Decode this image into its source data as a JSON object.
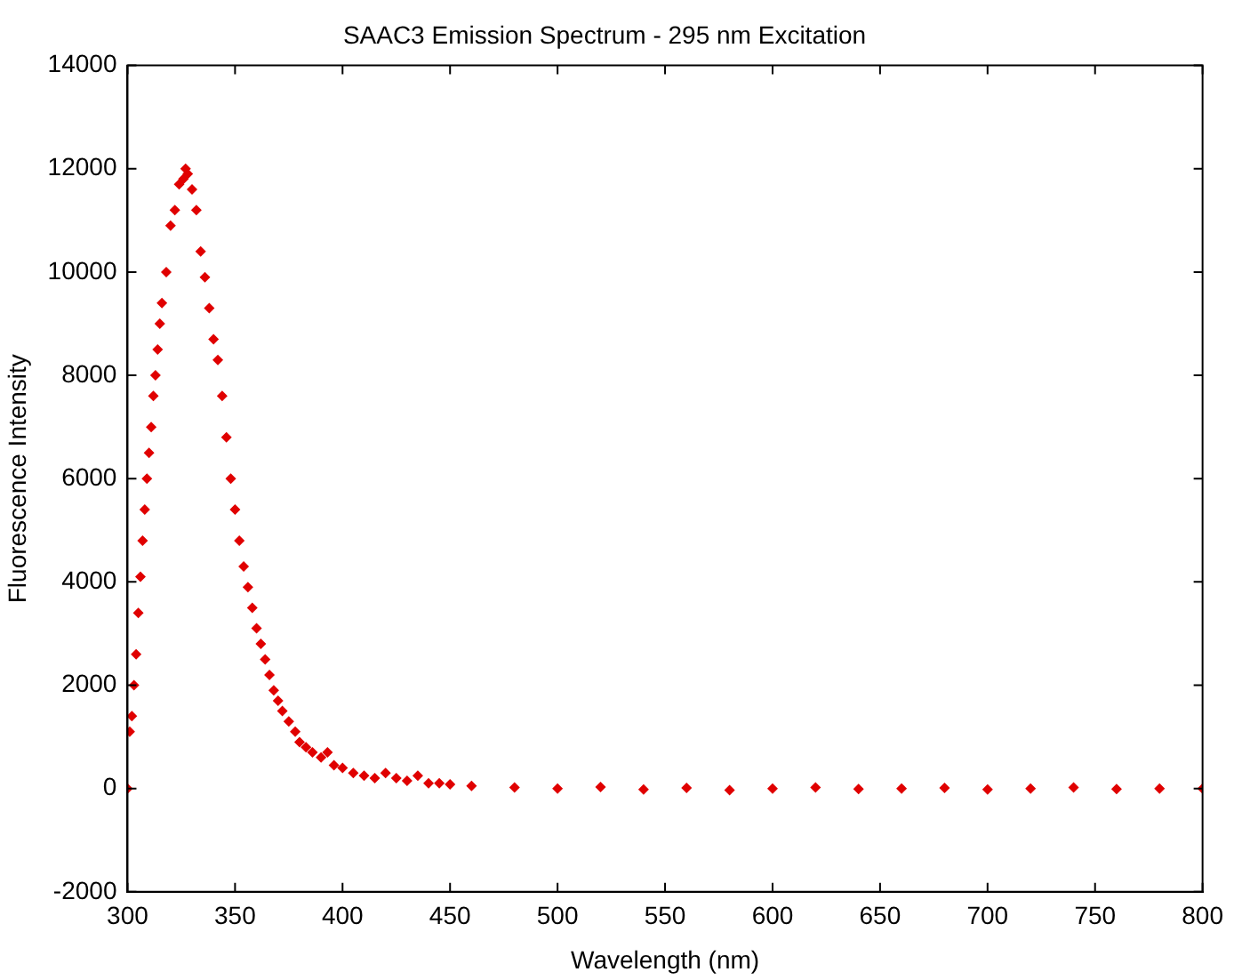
{
  "chart_data": {
    "type": "scatter",
    "title": "SAAC3 Emission Spectrum - 295 nm Excitation",
    "xlabel": "Wavelength (nm)",
    "ylabel": "Fluorescence Intensity",
    "x": [
      300,
      301,
      302,
      303,
      304,
      305,
      306,
      307,
      308,
      309,
      310,
      311,
      312,
      313,
      314,
      315,
      316,
      318,
      320,
      322,
      324,
      326,
      327,
      328,
      330,
      332,
      334,
      336,
      338,
      340,
      342,
      344,
      346,
      348,
      350,
      352,
      354,
      356,
      358,
      360,
      362,
      364,
      366,
      368,
      370,
      372,
      375,
      378,
      380,
      383,
      386,
      390,
      393,
      396,
      400,
      405,
      410,
      415,
      420,
      425,
      430,
      435,
      440,
      445,
      450,
      460,
      480,
      500,
      520,
      540,
      560,
      580,
      600,
      620,
      640,
      660,
      680,
      700,
      720,
      740,
      760,
      780,
      800
    ],
    "series": [
      {
        "color": "#e00000",
        "values": [
          0,
          1100,
          1400,
          2000,
          2600,
          3400,
          4100,
          4800,
          5400,
          6000,
          6500,
          7000,
          7600,
          8000,
          8500,
          9000,
          9400,
          10000,
          10900,
          11200,
          11700,
          11800,
          12000,
          11900,
          11600,
          11200,
          10400,
          9900,
          9300,
          8700,
          8300,
          7600,
          6800,
          6000,
          5400,
          4800,
          4300,
          3900,
          3500,
          3100,
          2800,
          2500,
          2200,
          1900,
          1700,
          1500,
          1300,
          1100,
          900,
          800,
          700,
          600,
          700,
          450,
          400,
          300,
          250,
          200,
          300,
          200,
          150,
          250,
          100,
          100,
          80,
          50,
          20,
          0,
          30,
          -20,
          10,
          -30,
          0,
          20,
          -10,
          0,
          10,
          -20,
          0,
          20,
          -10,
          0,
          0
        ]
      }
    ],
    "xlim": [
      300,
      800
    ],
    "xticks": [
      300,
      350,
      400,
      450,
      500,
      550,
      600,
      650,
      700,
      750,
      800
    ],
    "ylim": [
      -2000,
      14000
    ],
    "yticks": [
      -2000,
      0,
      2000,
      4000,
      6000,
      8000,
      10000,
      12000,
      14000
    ],
    "grid": false,
    "legend": false,
    "marker": "diamond"
  }
}
